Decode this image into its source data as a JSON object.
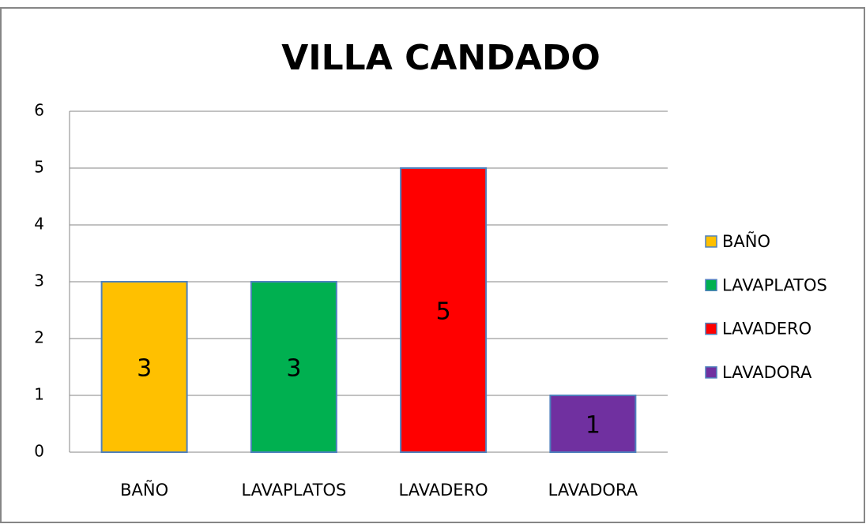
{
  "chart_data": {
    "type": "bar",
    "title": "VILLA CANDADO",
    "categories": [
      "BAÑO",
      "LAVAPLATOS",
      "LAVADERO",
      "LAVADORA"
    ],
    "values": [
      3,
      3,
      5,
      1
    ],
    "colors": [
      "#ffc000",
      "#00b050",
      "#ff0000",
      "#7030a0"
    ],
    "ylim": [
      0,
      6
    ],
    "yticks": [
      0,
      1,
      2,
      3,
      4,
      5,
      6
    ],
    "grid": true,
    "legend": "right",
    "data_labels": true
  }
}
